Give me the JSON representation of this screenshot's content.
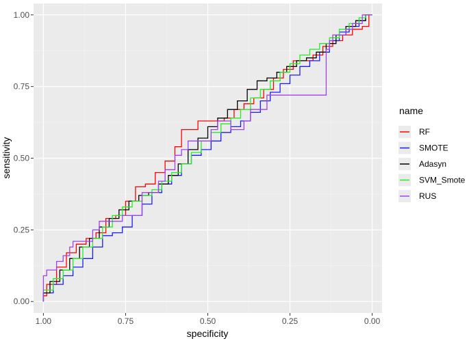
{
  "chart_data": {
    "type": "line",
    "xlabel": "specificity",
    "ylabel": "sensitivity",
    "xlim": [
      1.03,
      -0.03
    ],
    "ylim": [
      -0.04,
      1.04
    ],
    "x_reversed": true,
    "x_ticks": [
      1.0,
      0.75,
      0.5,
      0.25,
      0.0
    ],
    "x_tick_labels": [
      "1.00",
      "0.75",
      "0.50",
      "0.25",
      "0.00"
    ],
    "y_ticks": [
      0.0,
      0.25,
      0.5,
      0.75,
      1.0
    ],
    "y_tick_labels": [
      "0.00",
      "0.25",
      "0.50",
      "0.75",
      "1.00"
    ],
    "grid": true,
    "legend": {
      "title": "name",
      "position": "right"
    },
    "series": [
      {
        "name": "RF",
        "color": "#ff0000",
        "points": [
          [
            1.0,
            0.0
          ],
          [
            0.99,
            0.02
          ],
          [
            0.96,
            0.06
          ],
          [
            0.93,
            0.12
          ],
          [
            0.9,
            0.17
          ],
          [
            0.87,
            0.2
          ],
          [
            0.84,
            0.22
          ],
          [
            0.81,
            0.24
          ],
          [
            0.78,
            0.29
          ],
          [
            0.75,
            0.3
          ],
          [
            0.72,
            0.35
          ],
          [
            0.69,
            0.4
          ],
          [
            0.66,
            0.41
          ],
          [
            0.63,
            0.45
          ],
          [
            0.6,
            0.49
          ],
          [
            0.58,
            0.54
          ],
          [
            0.56,
            0.6
          ],
          [
            0.53,
            0.6
          ],
          [
            0.51,
            0.63
          ],
          [
            0.48,
            0.63
          ],
          [
            0.45,
            0.63
          ],
          [
            0.42,
            0.64
          ],
          [
            0.39,
            0.67
          ],
          [
            0.36,
            0.69
          ],
          [
            0.33,
            0.71
          ],
          [
            0.3,
            0.74
          ],
          [
            0.27,
            0.78
          ],
          [
            0.24,
            0.81
          ],
          [
            0.21,
            0.84
          ],
          [
            0.18,
            0.84
          ],
          [
            0.15,
            0.86
          ],
          [
            0.12,
            0.89
          ],
          [
            0.09,
            0.91
          ],
          [
            0.06,
            0.93
          ],
          [
            0.03,
            0.95
          ],
          [
            0.01,
            0.96
          ],
          [
            0.0,
            1.0
          ]
        ]
      },
      {
        "name": "SMOTE",
        "color": "#1a1aff",
        "points": [
          [
            1.0,
            0.0
          ],
          [
            0.97,
            0.03
          ],
          [
            0.94,
            0.06
          ],
          [
            0.91,
            0.09
          ],
          [
            0.88,
            0.12
          ],
          [
            0.85,
            0.15
          ],
          [
            0.82,
            0.19
          ],
          [
            0.79,
            0.23
          ],
          [
            0.76,
            0.24
          ],
          [
            0.73,
            0.26
          ],
          [
            0.7,
            0.3
          ],
          [
            0.67,
            0.34
          ],
          [
            0.64,
            0.38
          ],
          [
            0.61,
            0.41
          ],
          [
            0.58,
            0.44
          ],
          [
            0.55,
            0.48
          ],
          [
            0.52,
            0.51
          ],
          [
            0.49,
            0.53
          ],
          [
            0.46,
            0.56
          ],
          [
            0.43,
            0.59
          ],
          [
            0.4,
            0.61
          ],
          [
            0.37,
            0.63
          ],
          [
            0.34,
            0.66
          ],
          [
            0.31,
            0.7
          ],
          [
            0.28,
            0.73
          ],
          [
            0.25,
            0.76
          ],
          [
            0.22,
            0.79
          ],
          [
            0.19,
            0.82
          ],
          [
            0.16,
            0.84
          ],
          [
            0.13,
            0.87
          ],
          [
            0.1,
            0.91
          ],
          [
            0.07,
            0.94
          ],
          [
            0.04,
            0.96
          ],
          [
            0.02,
            0.98
          ],
          [
            0.0,
            1.0
          ]
        ]
      },
      {
        "name": "Adasyn",
        "color": "#000000",
        "points": [
          [
            1.0,
            0.0
          ],
          [
            0.98,
            0.03
          ],
          [
            0.95,
            0.07
          ],
          [
            0.92,
            0.11
          ],
          [
            0.89,
            0.15
          ],
          [
            0.86,
            0.19
          ],
          [
            0.83,
            0.22
          ],
          [
            0.8,
            0.26
          ],
          [
            0.77,
            0.29
          ],
          [
            0.74,
            0.32
          ],
          [
            0.71,
            0.35
          ],
          [
            0.68,
            0.37
          ],
          [
            0.65,
            0.38
          ],
          [
            0.62,
            0.41
          ],
          [
            0.59,
            0.44
          ],
          [
            0.56,
            0.48
          ],
          [
            0.53,
            0.53
          ],
          [
            0.5,
            0.57
          ],
          [
            0.47,
            0.61
          ],
          [
            0.44,
            0.64
          ],
          [
            0.41,
            0.67
          ],
          [
            0.38,
            0.7
          ],
          [
            0.35,
            0.74
          ],
          [
            0.32,
            0.77
          ],
          [
            0.29,
            0.78
          ],
          [
            0.26,
            0.8
          ],
          [
            0.23,
            0.82
          ],
          [
            0.2,
            0.84
          ],
          [
            0.17,
            0.85
          ],
          [
            0.14,
            0.87
          ],
          [
            0.11,
            0.9
          ],
          [
            0.08,
            0.93
          ],
          [
            0.05,
            0.96
          ],
          [
            0.02,
            0.98
          ],
          [
            0.0,
            1.0
          ]
        ]
      },
      {
        "name": "SVM_Smote",
        "color": "#22ee22",
        "points": [
          [
            1.0,
            0.0
          ],
          [
            0.97,
            0.04
          ],
          [
            0.94,
            0.08
          ],
          [
            0.91,
            0.11
          ],
          [
            0.88,
            0.15
          ],
          [
            0.85,
            0.19
          ],
          [
            0.82,
            0.22
          ],
          [
            0.79,
            0.26
          ],
          [
            0.76,
            0.3
          ],
          [
            0.73,
            0.33
          ],
          [
            0.7,
            0.35
          ],
          [
            0.67,
            0.37
          ],
          [
            0.64,
            0.39
          ],
          [
            0.61,
            0.42
          ],
          [
            0.58,
            0.45
          ],
          [
            0.55,
            0.48
          ],
          [
            0.52,
            0.52
          ],
          [
            0.49,
            0.56
          ],
          [
            0.46,
            0.59
          ],
          [
            0.43,
            0.62
          ],
          [
            0.4,
            0.64
          ],
          [
            0.37,
            0.67
          ],
          [
            0.34,
            0.71
          ],
          [
            0.31,
            0.74
          ],
          [
            0.28,
            0.77
          ],
          [
            0.25,
            0.8
          ],
          [
            0.22,
            0.83
          ],
          [
            0.19,
            0.86
          ],
          [
            0.16,
            0.88
          ],
          [
            0.13,
            0.9
          ],
          [
            0.1,
            0.92
          ],
          [
            0.07,
            0.95
          ],
          [
            0.04,
            0.97
          ],
          [
            0.02,
            0.99
          ],
          [
            0.0,
            1.0
          ]
        ]
      },
      {
        "name": "RUS",
        "color": "#a040ee",
        "points": [
          [
            1.0,
            0.0
          ],
          [
            1.0,
            0.09
          ],
          [
            0.99,
            0.09
          ],
          [
            0.99,
            0.11
          ],
          [
            0.96,
            0.11
          ],
          [
            0.96,
            0.14
          ],
          [
            0.94,
            0.14
          ],
          [
            0.94,
            0.16
          ],
          [
            0.92,
            0.16
          ],
          [
            0.92,
            0.19
          ],
          [
            0.91,
            0.19
          ],
          [
            0.91,
            0.21
          ],
          [
            0.85,
            0.21
          ],
          [
            0.85,
            0.25
          ],
          [
            0.83,
            0.25
          ],
          [
            0.83,
            0.28
          ],
          [
            0.76,
            0.28
          ],
          [
            0.76,
            0.3
          ],
          [
            0.7,
            0.3
          ],
          [
            0.7,
            0.38
          ],
          [
            0.65,
            0.38
          ],
          [
            0.63,
            0.42
          ],
          [
            0.6,
            0.46
          ],
          [
            0.58,
            0.51
          ],
          [
            0.56,
            0.53
          ],
          [
            0.55,
            0.56
          ],
          [
            0.49,
            0.56
          ],
          [
            0.47,
            0.6
          ],
          [
            0.45,
            0.63
          ],
          [
            0.43,
            0.63
          ],
          [
            0.41,
            0.6
          ],
          [
            0.39,
            0.6
          ],
          [
            0.37,
            0.63
          ],
          [
            0.36,
            0.67
          ],
          [
            0.32,
            0.67
          ],
          [
            0.3,
            0.72
          ],
          [
            0.14,
            0.72
          ],
          [
            0.14,
            0.84
          ],
          [
            0.13,
            0.88
          ],
          [
            0.12,
            0.91
          ],
          [
            0.08,
            0.93
          ],
          [
            0.06,
            0.95
          ],
          [
            0.03,
            0.97
          ],
          [
            0.0,
            1.0
          ]
        ]
      }
    ]
  }
}
